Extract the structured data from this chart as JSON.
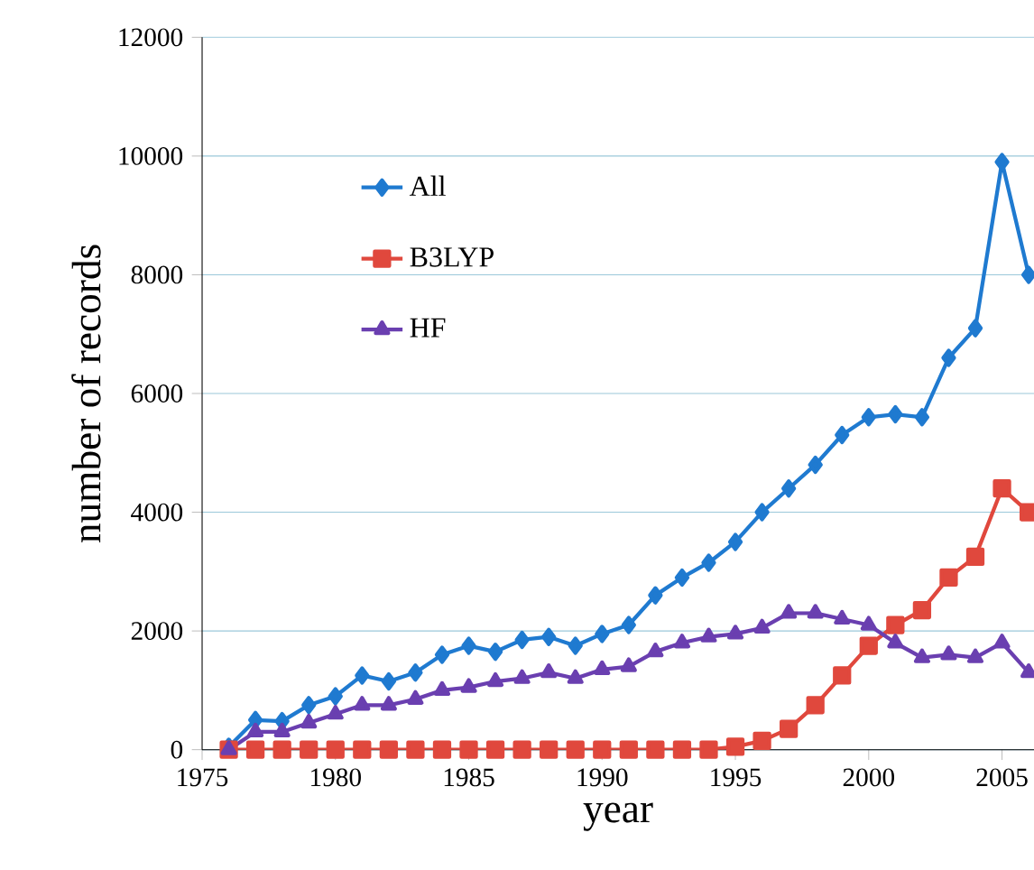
{
  "chart_data": {
    "type": "line",
    "xlabel": "year",
    "ylabel": "number of records",
    "x": [
      1976,
      1977,
      1978,
      1979,
      1980,
      1981,
      1982,
      1983,
      1984,
      1985,
      1986,
      1987,
      1988,
      1989,
      1990,
      1991,
      1992,
      1993,
      1994,
      1995,
      1996,
      1997,
      1998,
      1999,
      2000,
      2001,
      2002,
      2003,
      2004,
      2005,
      2006
    ],
    "series": [
      {
        "name": "All",
        "color": "#1f7ad0",
        "marker": "diamond",
        "values": [
          50,
          500,
          480,
          750,
          900,
          1250,
          1150,
          1300,
          1600,
          1750,
          1650,
          1850,
          1900,
          1750,
          1950,
          2100,
          2600,
          2900,
          3150,
          3500,
          4000,
          4400,
          4800,
          5300,
          5600,
          5650,
          5600,
          6600,
          7100,
          9900,
          8000
        ]
      },
      {
        "name": "B3LYP",
        "color": "#e0483d",
        "marker": "square",
        "values": [
          0,
          0,
          0,
          0,
          0,
          0,
          0,
          0,
          0,
          0,
          0,
          0,
          0,
          0,
          0,
          0,
          0,
          0,
          0,
          50,
          150,
          350,
          750,
          1250,
          1750,
          2100,
          2350,
          2900,
          3250,
          4400,
          4000
        ]
      },
      {
        "name": "HF",
        "color": "#6a3fb0",
        "marker": "triangle",
        "values": [
          0,
          300,
          300,
          450,
          600,
          750,
          750,
          850,
          1000,
          1050,
          1150,
          1200,
          1300,
          1200,
          1350,
          1400,
          1650,
          1800,
          1900,
          1950,
          2050,
          2300,
          2300,
          2200,
          2100,
          1800,
          1550,
          1600,
          1550,
          1800,
          1300
        ]
      }
    ],
    "xlim": [
      1975,
      2006.2
    ],
    "xticks": [
      1975,
      1980,
      1985,
      1990,
      1995,
      2000,
      2005
    ],
    "ylim": [
      0,
      12000
    ],
    "yticks": [
      0,
      2000,
      4000,
      6000,
      8000,
      10000,
      12000
    ],
    "grid": "y",
    "legend": "left"
  }
}
